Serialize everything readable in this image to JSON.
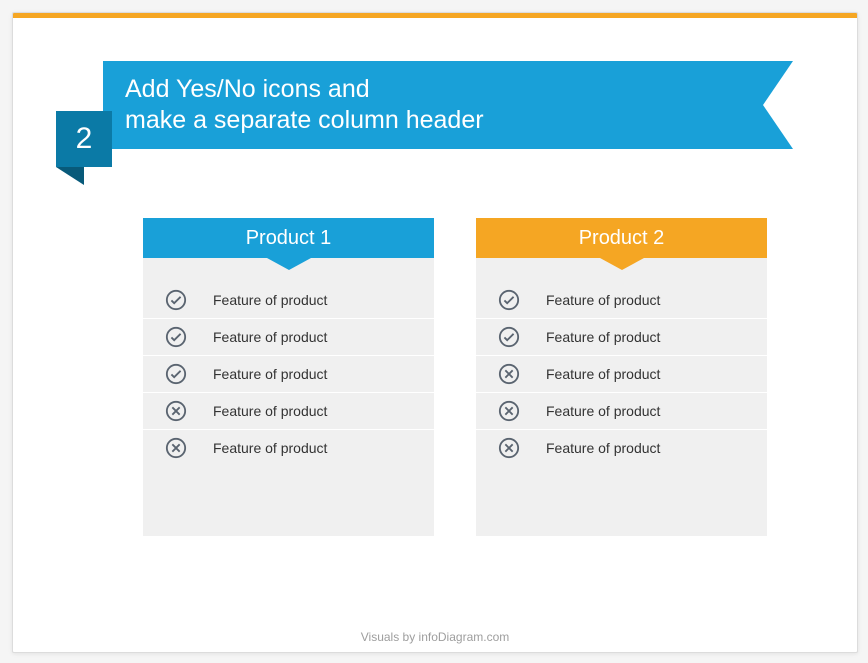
{
  "colors": {
    "stripe": "#f5a623",
    "ribbon": "#19a0d8",
    "ribbon_notch": "#ffffff",
    "badge": "#0b7aa6",
    "badge_fold": "#085a7a",
    "col1_header": "#19a0d8",
    "col2_header": "#f5a623",
    "col_body": "#f0f0f0",
    "icon_stroke": "#5a6470",
    "footer_text": "#9e9e9e"
  },
  "step_number": "2",
  "title_line1": "Add Yes/No icons and",
  "title_line2": "make a separate column header",
  "columns": [
    {
      "header": "Product 1",
      "features": [
        {
          "ok": true,
          "label": "Feature of product"
        },
        {
          "ok": true,
          "label": "Feature of product"
        },
        {
          "ok": true,
          "label": "Feature of product"
        },
        {
          "ok": false,
          "label": "Feature of product"
        },
        {
          "ok": false,
          "label": "Feature of product"
        }
      ]
    },
    {
      "header": "Product 2",
      "features": [
        {
          "ok": true,
          "label": "Feature of product"
        },
        {
          "ok": true,
          "label": "Feature of product"
        },
        {
          "ok": false,
          "label": "Feature of product"
        },
        {
          "ok": false,
          "label": "Feature of product"
        },
        {
          "ok": false,
          "label": "Feature of product"
        }
      ]
    }
  ],
  "footer": "Visuals by infoDiagram.com"
}
